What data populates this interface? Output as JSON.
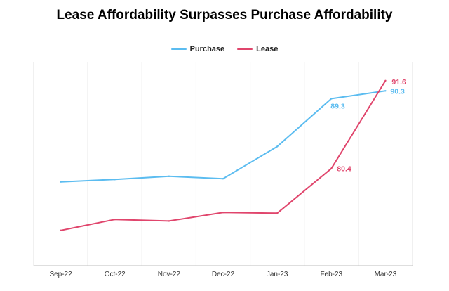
{
  "colors": {
    "purchase": "#5bbcf0",
    "lease": "#e0456c",
    "grid": "#e2e2e2",
    "axis": "#bdbdbd"
  },
  "chart_data": {
    "type": "line",
    "title": "Lease Affordability Surpasses Purchase Affordability",
    "xlabel": "",
    "ylabel": "",
    "categories": [
      "Sep-22",
      "Oct-22",
      "Nov-22",
      "Dec-22",
      "Jan-23",
      "Feb-23",
      "Mar-23"
    ],
    "series": [
      {
        "name": "Purchase",
        "color": "#5bbcf0",
        "values": [
          78.7,
          79.0,
          79.4,
          79.1,
          83.2,
          89.3,
          90.3
        ],
        "labels": [
          "",
          "",
          "",
          "",
          "",
          "89.3",
          "90.3"
        ]
      },
      {
        "name": "Lease",
        "color": "#e0456c",
        "values": [
          72.5,
          73.9,
          73.7,
          74.8,
          74.7,
          80.4,
          91.6
        ],
        "labels": [
          "",
          "",
          "",
          "",
          "",
          "80.4",
          "91.6"
        ]
      }
    ],
    "ylim": [
      68,
      94
    ],
    "grid": "vertical",
    "legend_position": "top-center"
  }
}
